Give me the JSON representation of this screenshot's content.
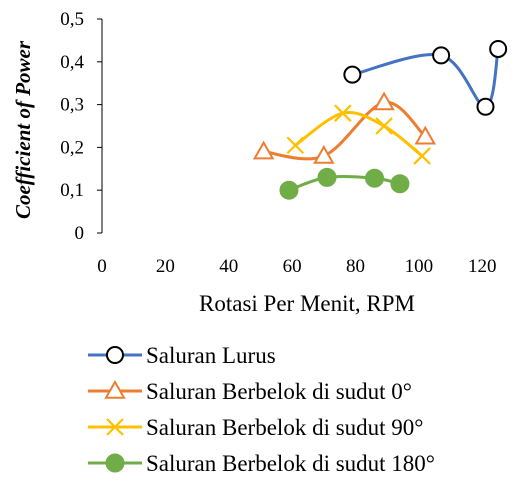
{
  "chart_data": {
    "type": "line",
    "smooth": true,
    "xlabel": "Rotasi Per Menit, RPM",
    "ylabel": "Coefficient of Power",
    "xlim": [
      0,
      130
    ],
    "ylim": [
      0,
      0.5
    ],
    "xticks": [
      0,
      20,
      40,
      60,
      80,
      100,
      120
    ],
    "xtick_labels": [
      "0",
      "20",
      "40",
      "60",
      "80",
      "100",
      "120"
    ],
    "yticks": [
      0,
      0.1,
      0.2,
      0.3,
      0.4,
      0.5
    ],
    "ytick_labels": [
      "0",
      "0,1",
      "0,2",
      "0,3",
      "0,4",
      "0,5"
    ],
    "grid": false,
    "legend_position": "bottom",
    "series": [
      {
        "name": "Saluran Lurus",
        "color": "#4472C4",
        "marker": "circle-open",
        "x": [
          79,
          107,
          121,
          125
        ],
        "y": [
          0.37,
          0.415,
          0.295,
          0.43
        ]
      },
      {
        "name": "Saluran Berbelok di sudut 0°",
        "color": "#ED7D31",
        "marker": "triangle-open",
        "x": [
          51,
          70,
          89,
          102
        ],
        "y": [
          0.19,
          0.18,
          0.305,
          0.225
        ]
      },
      {
        "name": "Saluran Berbelok di sudut 90°",
        "color": "#FFC000",
        "marker": "x",
        "x": [
          61,
          76,
          89,
          101
        ],
        "y": [
          0.205,
          0.28,
          0.25,
          0.18
        ]
      },
      {
        "name": "Saluran Berbelok di sudut 180°",
        "color": "#70AD47",
        "marker": "circle-filled",
        "x": [
          59,
          71,
          86,
          94
        ],
        "y": [
          0.1,
          0.13,
          0.128,
          0.115
        ]
      }
    ]
  }
}
